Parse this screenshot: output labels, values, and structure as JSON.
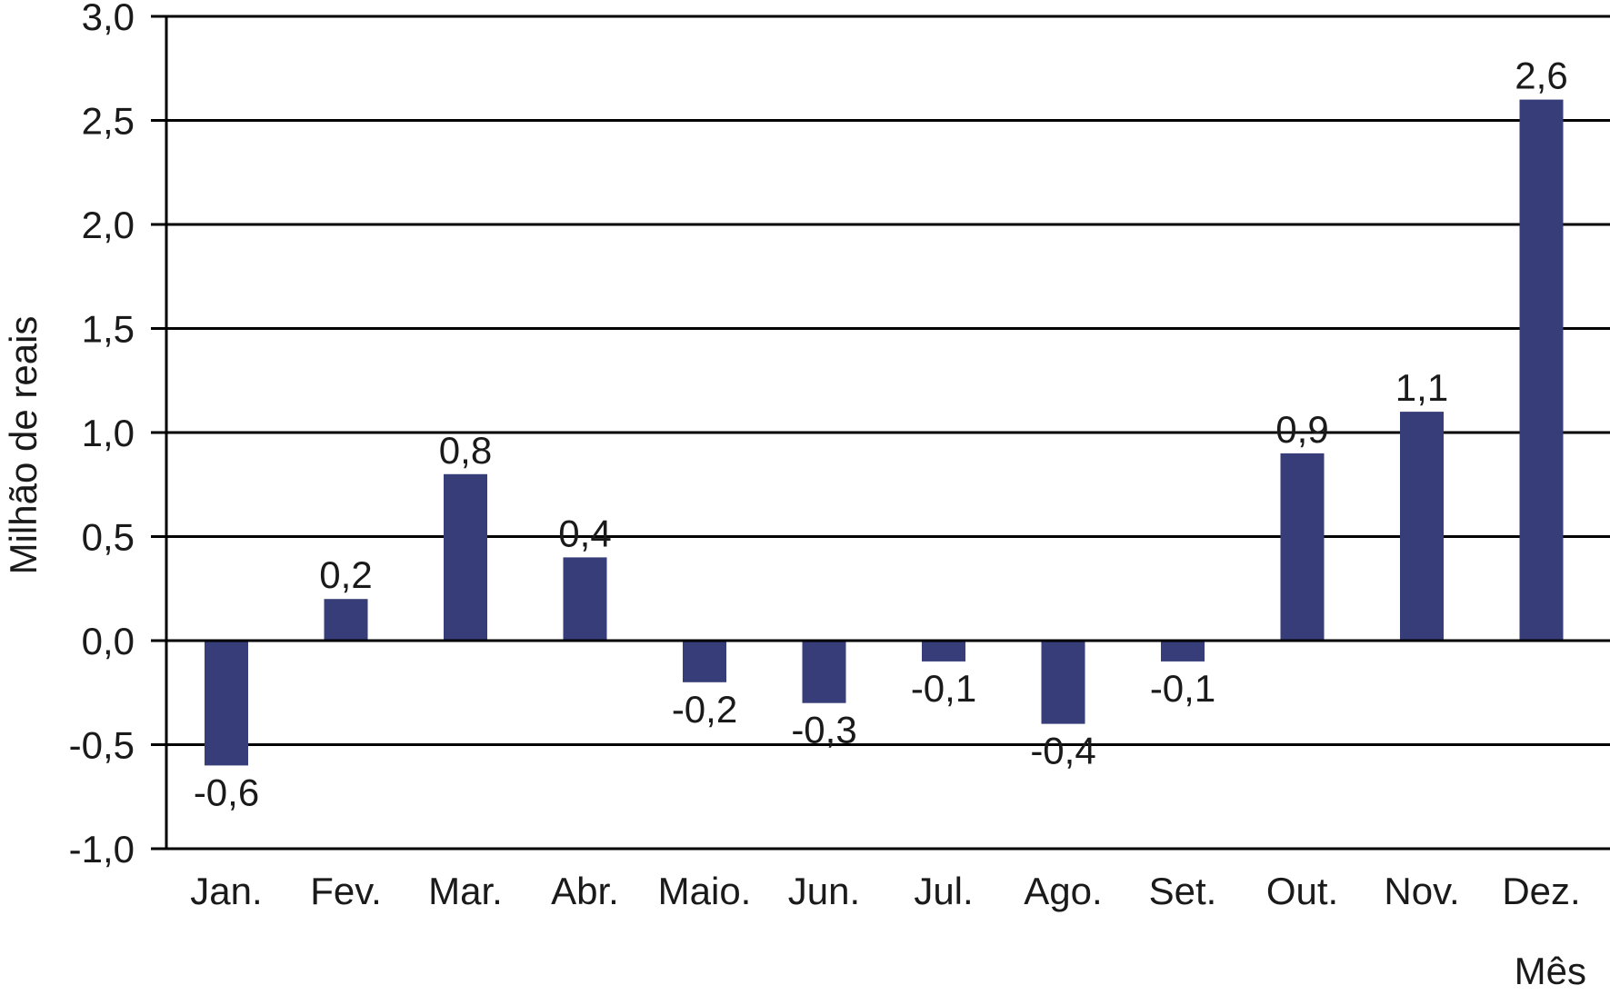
{
  "chart_data": {
    "type": "bar",
    "title": "",
    "xlabel": "Mês",
    "ylabel": "Milhão de reais",
    "categories": [
      "Jan.",
      "Fev.",
      "Mar.",
      "Abr.",
      "Maio.",
      "Jun.",
      "Jul.",
      "Ago.",
      "Set.",
      "Out.",
      "Nov.",
      "Dez."
    ],
    "values": [
      -0.6,
      0.2,
      0.8,
      0.4,
      -0.2,
      -0.3,
      -0.1,
      -0.4,
      -0.1,
      0.9,
      1.1,
      2.6
    ],
    "data_labels": [
      "-0,6",
      "0,2",
      "0,8",
      "0,4",
      "-0,2",
      "-0,3",
      "-0,1",
      "-0,4",
      "-0,1",
      "0,9",
      "1,1",
      "2,6"
    ],
    "ylim": [
      -1.0,
      3.0
    ],
    "yticks": [
      -1.0,
      -0.5,
      0.0,
      0.5,
      1.0,
      1.5,
      2.0,
      2.5,
      3.0
    ],
    "ytick_labels": [
      "-1,0",
      "-0,5",
      "0,0",
      "0,5",
      "1,0",
      "1,5",
      "2,0",
      "2,5",
      "3,0"
    ],
    "grid": true,
    "legend": "none",
    "bar_color": "#363d78",
    "grid_color": "#000000"
  }
}
